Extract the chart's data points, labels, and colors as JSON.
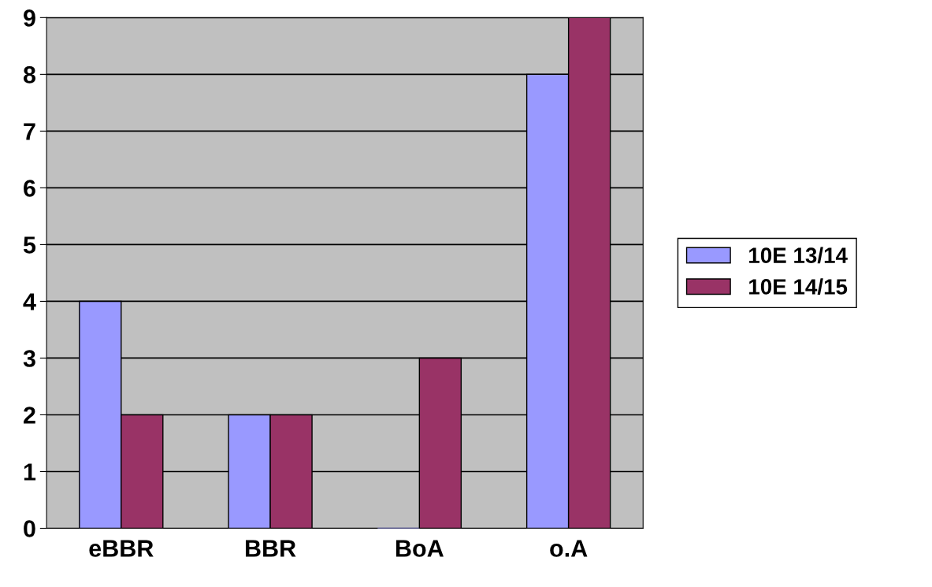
{
  "chart_data": {
    "type": "bar",
    "categories": [
      "eBBR",
      "BBR",
      "BoA",
      "o.A"
    ],
    "series": [
      {
        "name": "10E 13/14",
        "color": "#9999ff",
        "values": [
          4,
          2,
          0,
          8
        ]
      },
      {
        "name": "10E 14/15",
        "color": "#993366",
        "values": [
          2,
          2,
          3,
          9
        ]
      }
    ],
    "ylim": [
      0,
      9
    ],
    "yticks": [
      0,
      1,
      2,
      3,
      4,
      5,
      6,
      7,
      8,
      9
    ],
    "grid": "y",
    "legend": "right"
  }
}
